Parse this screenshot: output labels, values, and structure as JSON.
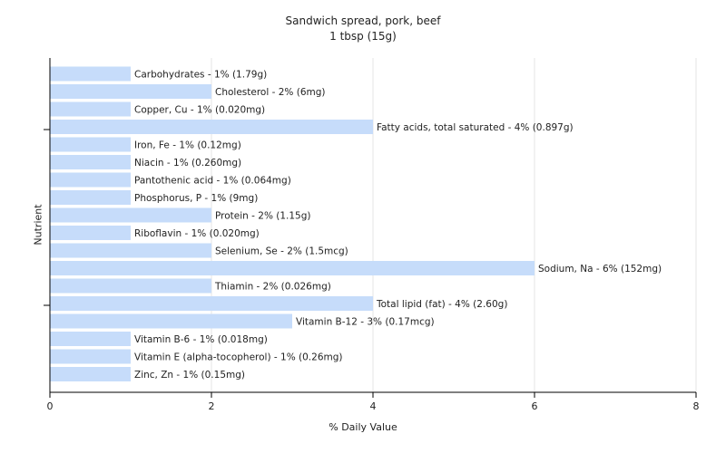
{
  "chart_data": {
    "type": "bar",
    "orientation": "horizontal",
    "title": "Sandwich spread, pork, beef",
    "subtitle": "1 tbsp (15g)",
    "xlabel": "% Daily Value",
    "ylabel": "Nutrient",
    "xlim": [
      0,
      8
    ],
    "xticks": [
      0,
      2,
      4,
      6,
      8
    ],
    "grid": true,
    "bar_color": "#c6dcfa",
    "categories": [
      "Carbohydrates",
      "Cholesterol",
      "Copper, Cu",
      "Fatty acids, total saturated",
      "Iron, Fe",
      "Niacin",
      "Pantothenic acid",
      "Phosphorus, P",
      "Protein",
      "Riboflavin",
      "Selenium, Se",
      "Sodium, Na",
      "Thiamin",
      "Total lipid (fat)",
      "Vitamin B-12",
      "Vitamin B-6",
      "Vitamin E (alpha-tocopherol)",
      "Zinc, Zn"
    ],
    "values": [
      1,
      2,
      1,
      4,
      1,
      1,
      1,
      1,
      2,
      1,
      2,
      6,
      2,
      4,
      3,
      1,
      1,
      1
    ],
    "labels": [
      "Carbohydrates - 1% (1.79g)",
      "Cholesterol - 2% (6mg)",
      "Copper, Cu - 1% (0.020mg)",
      "Fatty acids, total saturated - 4% (0.897g)",
      "Iron, Fe - 1% (0.12mg)",
      "Niacin - 1% (0.260mg)",
      "Pantothenic acid - 1% (0.064mg)",
      "Phosphorus, P - 1% (9mg)",
      "Protein - 2% (1.15g)",
      "Riboflavin - 1% (0.020mg)",
      "Selenium, Se - 2% (1.5mcg)",
      "Sodium, Na - 6% (152mg)",
      "Thiamin - 2% (0.026mg)",
      "Total lipid (fat) - 4% (2.60g)",
      "Vitamin B-12 - 3% (0.17mcg)",
      "Vitamin B-6 - 1% (0.018mg)",
      "Vitamin E (alpha-tocopherol) - 1% (0.26mg)",
      "Zinc, Zn - 1% (0.15mg)"
    ]
  }
}
